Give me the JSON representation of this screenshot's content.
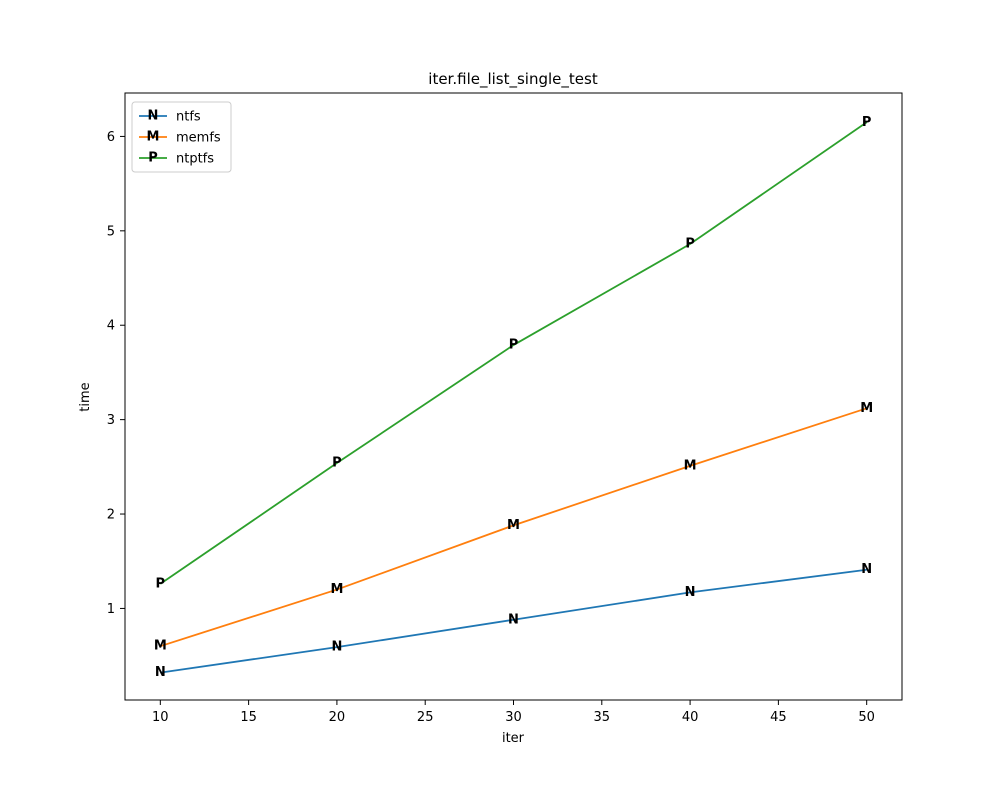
{
  "figure": {
    "background": "#ffffff",
    "spine_color": "#000000"
  },
  "chart_data": {
    "type": "line",
    "title": "iter.file_list_single_test",
    "xlabel": "iter",
    "ylabel": "time",
    "x": [
      10,
      20,
      30,
      40,
      50
    ],
    "series": [
      {
        "name": "ntfs",
        "color": "#1f77b4",
        "marker": "N",
        "values": [
          0.32,
          0.59,
          0.88,
          1.17,
          1.41
        ]
      },
      {
        "name": "memfs",
        "color": "#ff7f0e",
        "marker": "M",
        "values": [
          0.6,
          1.2,
          1.88,
          2.51,
          3.12
        ]
      },
      {
        "name": "ntptfs",
        "color": "#2ca02c",
        "marker": "P",
        "values": [
          1.26,
          2.54,
          3.79,
          4.86,
          6.15
        ]
      }
    ],
    "xticks": [
      10,
      15,
      20,
      25,
      30,
      35,
      40,
      45,
      50
    ],
    "yticks": [
      1,
      2,
      3,
      4,
      5,
      6
    ],
    "xlim": [
      8,
      52
    ],
    "ylim": [
      0.03,
      6.46
    ],
    "grid": false,
    "legend": {
      "position": "upper left",
      "entries": [
        "ntfs",
        "memfs",
        "ntptfs"
      ]
    }
  }
}
